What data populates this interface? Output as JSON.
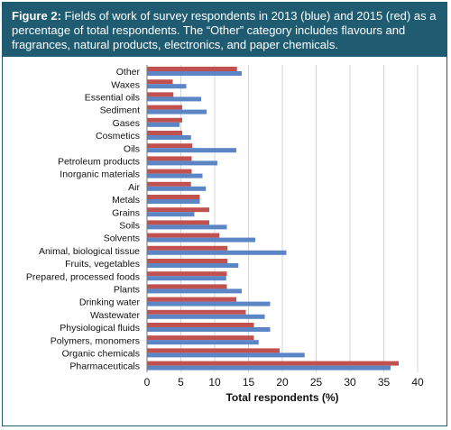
{
  "header": {
    "figure_label": "Figure 2:",
    "caption": "Fields of work of survey respondents in 2013 (blue) and 2015 (red) as a percentage of total respondents. The “Other” category includes flavours and fragrances, natural products, electronics, and paper chemicals."
  },
  "colors": {
    "header_bg": "#1f5c72",
    "series_2013": "#5b85c5",
    "series_2015": "#c1514f"
  },
  "chart_data": {
    "type": "bar",
    "orientation": "horizontal",
    "title": "Fields of work of survey respondents in 2013 (blue) and 2015 (red) as a percentage of total respondents.",
    "xlabel": "Total respondents (%)",
    "ylabel": "",
    "xlim": [
      0,
      40
    ],
    "xticks": [
      "0",
      "5",
      "10",
      "15",
      "20",
      "25",
      "30",
      "35",
      "40"
    ],
    "grid": "vertical",
    "legend": "none",
    "categories": [
      "Other",
      "Waxes",
      "Essential oils",
      "Sediment",
      "Gases",
      "Cosmetics",
      "Oils",
      "Petroleum products",
      "Inorganic materials",
      "Air",
      "Metals",
      "Grains",
      "Soils",
      "Solvents",
      "Animal, biological tissue",
      "Fruits, vegetables",
      "Prepared, processed foods",
      "Plants",
      "Drinking water",
      "Wastewater",
      "Physiological fluids",
      "Polymers, monomers",
      "Organic chemicals",
      "Pharmaceuticals"
    ],
    "series": [
      {
        "values": [
          13.3,
          3.8,
          3.9,
          5.2,
          5.2,
          5.2,
          6.7,
          6.6,
          6.6,
          6.5,
          7.8,
          9.2,
          9.2,
          10.7,
          11.9,
          11.9,
          11.8,
          11.8,
          13.2,
          14.6,
          15.8,
          15.8,
          19.6,
          37.2
        ]
      },
      {
        "values": [
          14.0,
          5.8,
          8.0,
          8.8,
          4.8,
          6.5,
          13.2,
          10.4,
          8.2,
          8.7,
          7.8,
          7.0,
          11.8,
          16.0,
          20.6,
          13.5,
          11.7,
          14.0,
          18.2,
          17.4,
          18.2,
          16.5,
          23.3,
          36.0
        ]
      }
    ]
  }
}
